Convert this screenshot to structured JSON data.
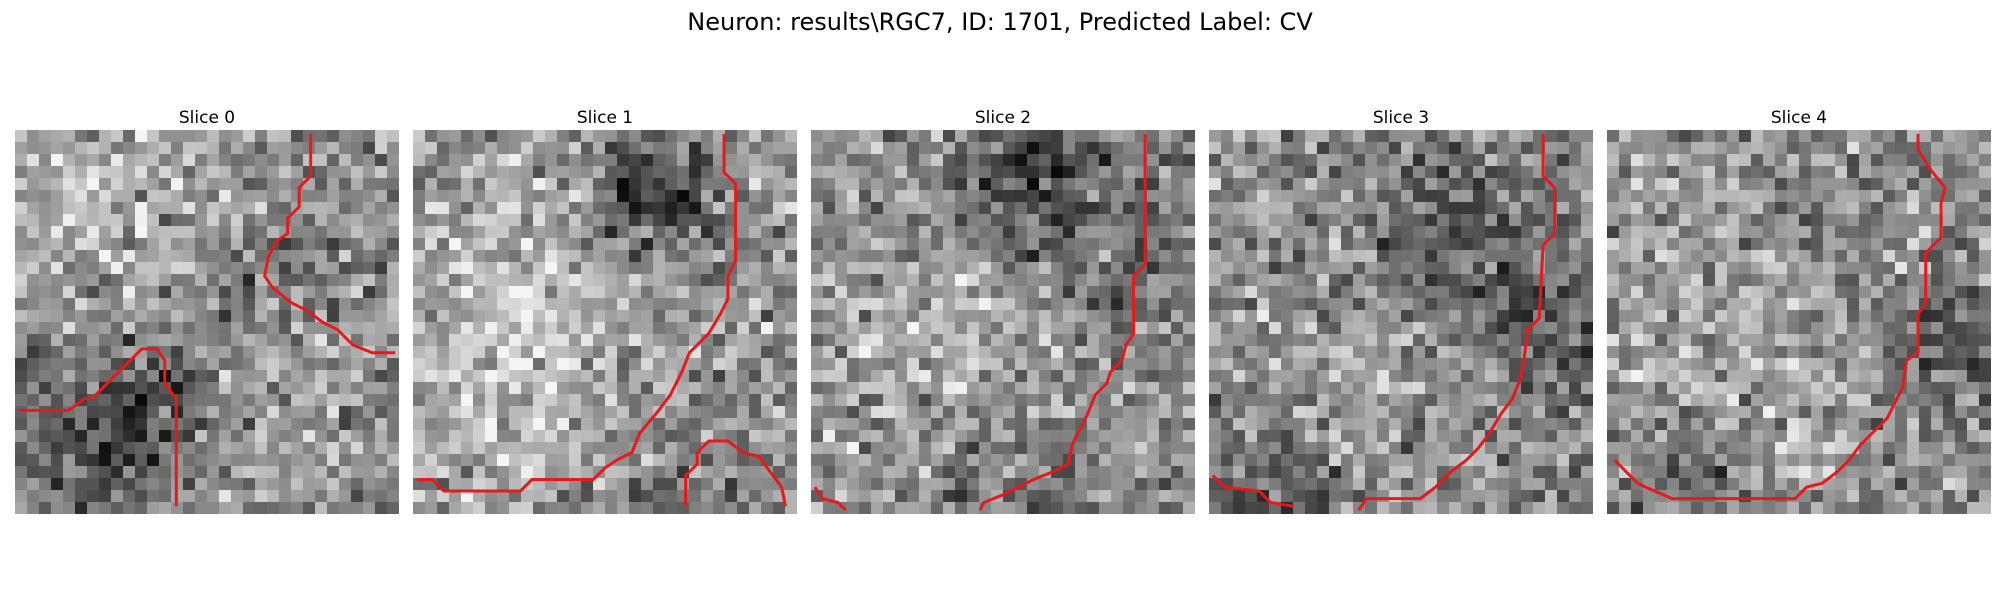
{
  "figure": {
    "title": "Neuron: results\\RGC7, ID: 1701, Predicted Label: CV"
  },
  "contour_color": "#e41a1c",
  "panels": [
    {
      "title": "Slice 0",
      "mean": 138,
      "blobs": [
        [
          0.18,
          0.18,
          0.22,
          45
        ],
        [
          0.35,
          0.7,
          0.12,
          -55
        ],
        [
          0.18,
          0.85,
          0.15,
          -45
        ],
        [
          0.75,
          0.38,
          0.12,
          -30
        ],
        [
          0.7,
          0.7,
          0.2,
          25
        ]
      ],
      "contours": [
        [
          [
            0.01,
            0.73
          ],
          [
            0.14,
            0.73
          ],
          [
            0.18,
            0.7
          ],
          [
            0.2,
            0.7
          ],
          [
            0.24,
            0.66
          ],
          [
            0.3,
            0.6
          ],
          [
            0.33,
            0.57
          ],
          [
            0.37,
            0.57
          ],
          [
            0.39,
            0.6
          ],
          [
            0.39,
            0.66
          ],
          [
            0.42,
            0.7
          ],
          [
            0.42,
            0.98
          ]
        ],
        [
          [
            0.77,
            0.01
          ],
          [
            0.77,
            0.12
          ],
          [
            0.74,
            0.15
          ],
          [
            0.74,
            0.2
          ],
          [
            0.71,
            0.23
          ],
          [
            0.71,
            0.27
          ],
          [
            0.68,
            0.29
          ],
          [
            0.66,
            0.33
          ],
          [
            0.65,
            0.38
          ],
          [
            0.67,
            0.41
          ],
          [
            0.72,
            0.45
          ],
          [
            0.76,
            0.47
          ],
          [
            0.8,
            0.5
          ],
          [
            0.84,
            0.52
          ],
          [
            0.88,
            0.56
          ],
          [
            0.93,
            0.58
          ],
          [
            0.99,
            0.58
          ]
        ]
      ]
    },
    {
      "title": "Slice 1",
      "mean": 150,
      "blobs": [
        [
          0.62,
          0.14,
          0.13,
          -85
        ],
        [
          0.25,
          0.6,
          0.22,
          45
        ],
        [
          0.3,
          0.3,
          0.18,
          25
        ],
        [
          0.7,
          0.9,
          0.15,
          -30
        ]
      ],
      "contours": [
        [
          [
            0.01,
            0.91
          ],
          [
            0.05,
            0.91
          ],
          [
            0.08,
            0.94
          ],
          [
            0.28,
            0.94
          ],
          [
            0.31,
            0.91
          ],
          [
            0.47,
            0.91
          ],
          [
            0.5,
            0.88
          ],
          [
            0.53,
            0.86
          ],
          [
            0.57,
            0.84
          ],
          [
            0.59,
            0.79
          ],
          [
            0.64,
            0.73
          ],
          [
            0.67,
            0.69
          ],
          [
            0.7,
            0.63
          ],
          [
            0.72,
            0.58
          ],
          [
            0.77,
            0.53
          ],
          [
            0.8,
            0.48
          ],
          [
            0.82,
            0.44
          ],
          [
            0.82,
            0.38
          ],
          [
            0.84,
            0.34
          ],
          [
            0.84,
            0.14
          ],
          [
            0.81,
            0.11
          ],
          [
            0.81,
            0.01
          ]
        ],
        [
          [
            0.71,
            0.98
          ],
          [
            0.71,
            0.9
          ],
          [
            0.74,
            0.87
          ],
          [
            0.74,
            0.84
          ],
          [
            0.77,
            0.81
          ],
          [
            0.82,
            0.81
          ],
          [
            0.86,
            0.84
          ],
          [
            0.9,
            0.85
          ],
          [
            0.93,
            0.89
          ],
          [
            0.96,
            0.93
          ],
          [
            0.97,
            0.98
          ]
        ]
      ]
    },
    {
      "title": "Slice 2",
      "mean": 142,
      "blobs": [
        [
          0.58,
          0.12,
          0.14,
          -80
        ],
        [
          0.35,
          0.5,
          0.22,
          35
        ],
        [
          0.9,
          0.4,
          0.15,
          -35
        ],
        [
          0.5,
          0.95,
          0.15,
          -35
        ]
      ],
      "contours": [
        [
          [
            0.87,
            0.01
          ],
          [
            0.87,
            0.35
          ],
          [
            0.84,
            0.38
          ],
          [
            0.84,
            0.53
          ],
          [
            0.82,
            0.56
          ],
          [
            0.81,
            0.6
          ],
          [
            0.78,
            0.63
          ],
          [
            0.77,
            0.66
          ],
          [
            0.74,
            0.69
          ],
          [
            0.72,
            0.74
          ],
          [
            0.7,
            0.78
          ],
          [
            0.68,
            0.82
          ],
          [
            0.67,
            0.87
          ],
          [
            0.63,
            0.89
          ],
          [
            0.58,
            0.91
          ],
          [
            0.54,
            0.93
          ],
          [
            0.5,
            0.95
          ],
          [
            0.45,
            0.97
          ],
          [
            0.44,
            0.99
          ]
        ],
        [
          [
            0.01,
            0.93
          ],
          [
            0.03,
            0.96
          ],
          [
            0.07,
            0.97
          ],
          [
            0.09,
            0.99
          ]
        ]
      ]
    },
    {
      "title": "Slice 3",
      "mean": 138,
      "blobs": [
        [
          0.6,
          0.3,
          0.18,
          -45
        ],
        [
          0.4,
          0.6,
          0.22,
          25
        ],
        [
          0.9,
          0.5,
          0.12,
          -35
        ],
        [
          0.15,
          0.92,
          0.12,
          -40
        ]
      ],
      "contours": [
        [
          [
            0.39,
            0.99
          ],
          [
            0.41,
            0.96
          ],
          [
            0.55,
            0.96
          ],
          [
            0.59,
            0.93
          ],
          [
            0.63,
            0.89
          ],
          [
            0.67,
            0.86
          ],
          [
            0.7,
            0.83
          ],
          [
            0.73,
            0.79
          ],
          [
            0.76,
            0.74
          ],
          [
            0.79,
            0.7
          ],
          [
            0.81,
            0.65
          ],
          [
            0.82,
            0.6
          ],
          [
            0.83,
            0.52
          ],
          [
            0.86,
            0.49
          ],
          [
            0.87,
            0.3
          ],
          [
            0.9,
            0.27
          ],
          [
            0.9,
            0.15
          ],
          [
            0.87,
            0.12
          ],
          [
            0.87,
            0.01
          ]
        ],
        [
          [
            0.01,
            0.9
          ],
          [
            0.04,
            0.93
          ],
          [
            0.13,
            0.94
          ],
          [
            0.16,
            0.97
          ],
          [
            0.22,
            0.98
          ]
        ]
      ]
    },
    {
      "title": "Slice 4",
      "mean": 145,
      "blobs": [
        [
          0.4,
          0.5,
          0.25,
          20
        ],
        [
          0.92,
          0.55,
          0.14,
          -55
        ],
        [
          0.25,
          0.92,
          0.12,
          -30
        ],
        [
          0.55,
          0.2,
          0.18,
          -15
        ]
      ],
      "contours": [
        [
          [
            0.02,
            0.86
          ],
          [
            0.05,
            0.89
          ],
          [
            0.08,
            0.92
          ],
          [
            0.1,
            0.93
          ],
          [
            0.17,
            0.96
          ],
          [
            0.49,
            0.96
          ],
          [
            0.52,
            0.93
          ],
          [
            0.56,
            0.92
          ],
          [
            0.6,
            0.89
          ],
          [
            0.63,
            0.86
          ],
          [
            0.66,
            0.82
          ],
          [
            0.69,
            0.79
          ],
          [
            0.73,
            0.75
          ],
          [
            0.75,
            0.71
          ],
          [
            0.77,
            0.67
          ],
          [
            0.78,
            0.6
          ],
          [
            0.81,
            0.58
          ],
          [
            0.81,
            0.48
          ],
          [
            0.83,
            0.45
          ],
          [
            0.83,
            0.32
          ],
          [
            0.87,
            0.28
          ],
          [
            0.87,
            0.19
          ],
          [
            0.88,
            0.15
          ],
          [
            0.84,
            0.1
          ],
          [
            0.81,
            0.05
          ],
          [
            0.81,
            0.01
          ]
        ]
      ]
    }
  ]
}
